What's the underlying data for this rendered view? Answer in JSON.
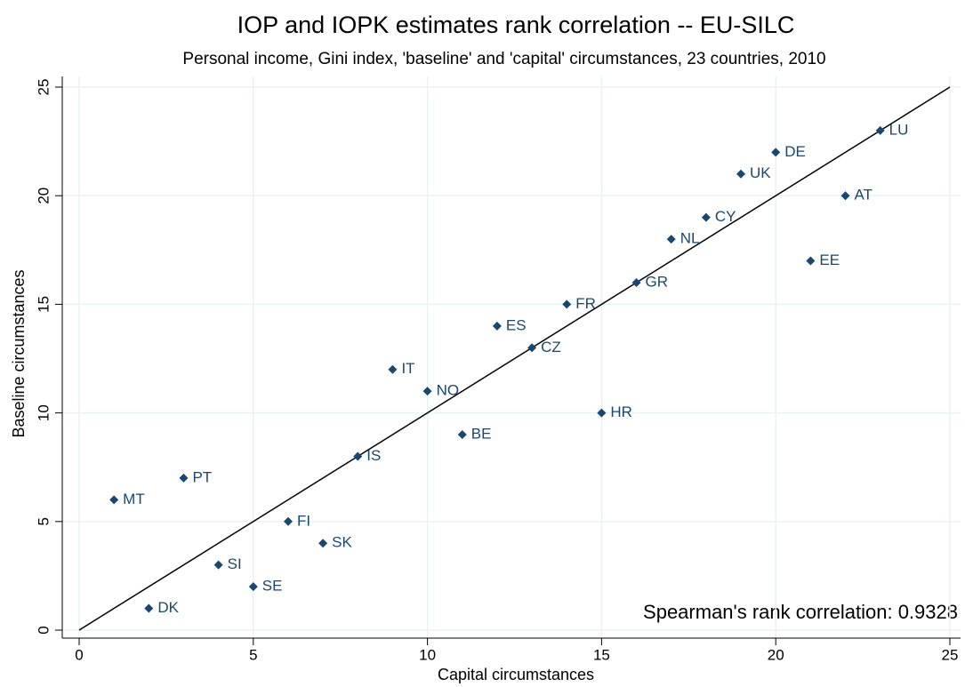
{
  "chart_data": {
    "type": "scatter",
    "title": "IOP and IOPK estimates rank correlation -- EU-SILC",
    "subtitle": "Personal income, Gini index, 'baseline' and 'capital' circumstances, 23 countries, 2010",
    "x_label": "Capital circumstances",
    "y_label": "Baseline circumstances",
    "annotation": "Spearman's rank correlation: 0.9328",
    "labels": [
      "LU",
      "DE",
      "UK",
      "AT",
      "CY",
      "NL",
      "EE",
      "GR",
      "FR",
      "ES",
      "CZ",
      "IT",
      "NO",
      "HR",
      "BE",
      "IS",
      "PT",
      "MT",
      "FI",
      "SK",
      "SI",
      "SE",
      "DK"
    ],
    "x": [
      23,
      20,
      19,
      22,
      18,
      17,
      21,
      16,
      14,
      12,
      13,
      9,
      10,
      15,
      11,
      8,
      3,
      1,
      6,
      7,
      4,
      5,
      2
    ],
    "y": [
      23,
      22,
      21,
      20,
      19,
      18,
      17,
      16,
      15,
      14,
      13,
      12,
      11,
      10,
      9,
      8,
      7,
      6,
      5,
      4,
      3,
      2,
      1
    ],
    "color": "#1a476f",
    "label_color": "#1a476f",
    "xlim": [
      0,
      25
    ],
    "ylim": [
      0,
      25
    ],
    "xticks": [
      0,
      5,
      10,
      15,
      20,
      25
    ],
    "yticks": [
      0,
      5,
      10,
      15,
      20,
      25
    ],
    "grid": true,
    "diagonal": true
  }
}
